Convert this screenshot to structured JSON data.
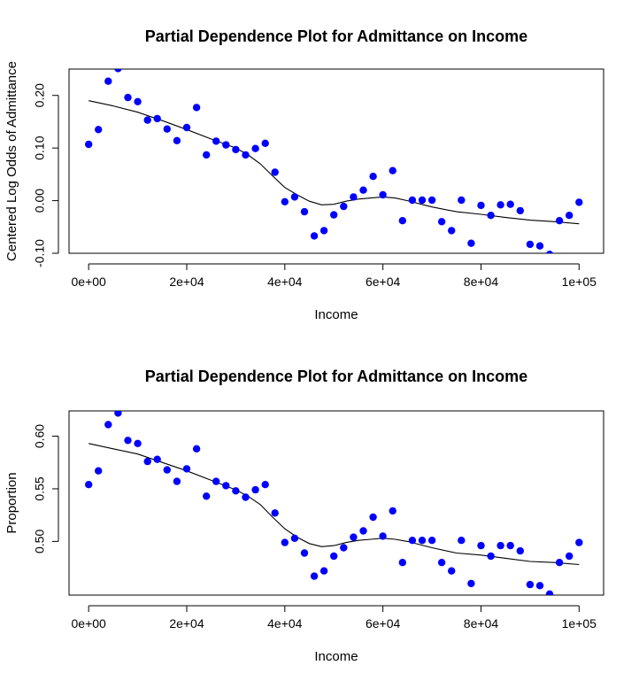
{
  "colors": {
    "points": "#0000ff",
    "line": "#000000"
  },
  "chart_data": [
    {
      "type": "scatter",
      "title": "Partial Dependence Plot for Admittance on Income",
      "xlabel": "Income",
      "ylabel": "Centered Log Odds of Admittance",
      "xlim": [
        -4000,
        105000
      ],
      "ylim": [
        -0.1,
        0.25
      ],
      "xticks": [
        0,
        20000,
        40000,
        60000,
        80000,
        100000
      ],
      "xtick_labels": [
        "0e+00",
        "2e+04",
        "4e+04",
        "6e+04",
        "8e+04",
        "1e+05"
      ],
      "yticks": [
        -0.1,
        0,
        0.1,
        0.2
      ],
      "ytick_labels": [
        "-0.10",
        "0.00",
        "0.10",
        "0.20"
      ],
      "points": {
        "x": [
          0,
          2000,
          4000,
          6000,
          8000,
          10000,
          12000,
          14000,
          16000,
          18000,
          20000,
          22000,
          24000,
          26000,
          28000,
          30000,
          32000,
          34000,
          36000,
          38000,
          40000,
          42000,
          44000,
          46000,
          48000,
          50000,
          52000,
          54000,
          56000,
          58000,
          60000,
          62000,
          64000,
          66000,
          68000,
          70000,
          72000,
          74000,
          76000,
          78000,
          80000,
          82000,
          84000,
          86000,
          88000,
          90000,
          92000,
          94000,
          96000,
          98000,
          100000
        ],
        "y": [
          0.107,
          0.135,
          0.227,
          0.251,
          0.196,
          0.188,
          0.153,
          0.156,
          0.136,
          0.114,
          0.139,
          0.177,
          0.087,
          0.113,
          0.106,
          0.097,
          0.087,
          0.099,
          0.109,
          0.054,
          -0.002,
          0.007,
          -0.021,
          -0.067,
          -0.057,
          -0.027,
          -0.011,
          0.007,
          0.02,
          0.046,
          0.011,
          0.057,
          -0.038,
          0.001,
          0.001,
          0.001,
          -0.04,
          -0.057,
          0.001,
          -0.081,
          -0.009,
          -0.028,
          -0.008,
          -0.007,
          -0.019,
          -0.083,
          -0.086,
          -0.102,
          -0.038,
          -0.028,
          -0.003
        ]
      },
      "smooth": {
        "x": [
          0,
          5000,
          10000,
          15000,
          20000,
          25000,
          30000,
          32500,
          35000,
          37500,
          40000,
          42500,
          45000,
          47500,
          50000,
          52500,
          55000,
          57500,
          60000,
          62500,
          65000,
          70000,
          75000,
          80000,
          85000,
          90000,
          95000,
          100000
        ],
        "y": [
          0.19,
          0.18,
          0.168,
          0.152,
          0.135,
          0.117,
          0.1,
          0.087,
          0.07,
          0.047,
          0.025,
          0.011,
          -0.001,
          -0.008,
          -0.007,
          -0.001,
          0.003,
          0.005,
          0.007,
          0.005,
          0.0,
          -0.012,
          -0.021,
          -0.026,
          -0.032,
          -0.037,
          -0.04,
          -0.044
        ]
      }
    },
    {
      "type": "scatter",
      "title": "Partial Dependence Plot for Admittance on Income",
      "xlabel": "Income",
      "ylabel": "Proportion",
      "xlim": [
        -4000,
        105000
      ],
      "ylim": [
        0.449,
        0.624
      ],
      "xticks": [
        0,
        20000,
        40000,
        60000,
        80000,
        100000
      ],
      "xtick_labels": [
        "0e+00",
        "2e+04",
        "4e+04",
        "6e+04",
        "8e+04",
        "1e+05"
      ],
      "yticks": [
        0.5,
        0.55,
        0.6
      ],
      "ytick_labels": [
        "0.50",
        "0.55",
        "0.60"
      ],
      "points": {
        "x": [
          0,
          2000,
          4000,
          6000,
          8000,
          10000,
          12000,
          14000,
          16000,
          18000,
          20000,
          22000,
          24000,
          26000,
          28000,
          30000,
          32000,
          34000,
          36000,
          38000,
          40000,
          42000,
          44000,
          46000,
          48000,
          50000,
          52000,
          54000,
          56000,
          58000,
          60000,
          62000,
          64000,
          66000,
          68000,
          70000,
          72000,
          74000,
          76000,
          78000,
          80000,
          82000,
          84000,
          86000,
          88000,
          90000,
          92000,
          94000,
          96000,
          98000,
          100000
        ],
        "y": [
          0.554,
          0.567,
          0.611,
          0.622,
          0.596,
          0.593,
          0.576,
          0.578,
          0.568,
          0.557,
          0.569,
          0.588,
          0.543,
          0.557,
          0.553,
          0.548,
          0.542,
          0.549,
          0.554,
          0.527,
          0.499,
          0.503,
          0.489,
          0.467,
          0.472,
          0.486,
          0.494,
          0.504,
          0.51,
          0.523,
          0.505,
          0.529,
          0.48,
          0.501,
          0.501,
          0.501,
          0.48,
          0.472,
          0.501,
          0.46,
          0.496,
          0.486,
          0.496,
          0.496,
          0.491,
          0.459,
          0.458,
          0.45,
          0.48,
          0.486,
          0.499
        ]
      },
      "smooth": {
        "x": [
          0,
          5000,
          10000,
          15000,
          20000,
          25000,
          30000,
          32500,
          35000,
          37500,
          40000,
          42500,
          45000,
          47500,
          50000,
          52500,
          55000,
          57500,
          60000,
          62500,
          65000,
          70000,
          75000,
          80000,
          85000,
          90000,
          95000,
          100000
        ],
        "y": [
          0.593,
          0.588,
          0.583,
          0.575,
          0.567,
          0.558,
          0.549,
          0.543,
          0.535,
          0.523,
          0.512,
          0.504,
          0.498,
          0.495,
          0.496,
          0.499,
          0.501,
          0.502,
          0.503,
          0.502,
          0.5,
          0.494,
          0.489,
          0.487,
          0.484,
          0.481,
          0.48,
          0.478
        ]
      }
    }
  ]
}
